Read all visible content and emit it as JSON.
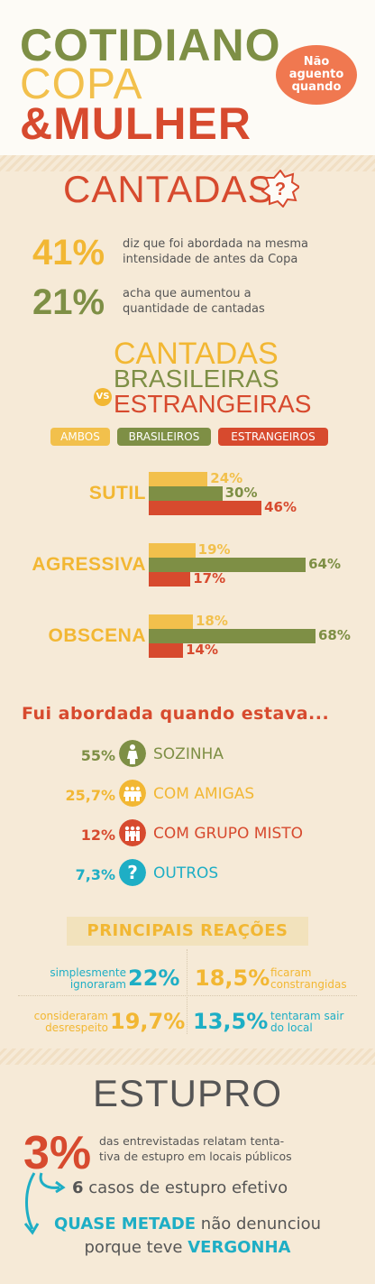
{
  "header": {
    "title_line1": "COTIDIANO",
    "title_line2": "COPA",
    "title_line3": "&MULHER",
    "badge": "Não aguento quando"
  },
  "cantadas": {
    "heading": "CANTADAS",
    "question_mark": "?",
    "stat1": {
      "value": "41%",
      "text": "diz que foi abordada na mesma intensidade de antes da Copa"
    },
    "stat2": {
      "value": "21%",
      "text": "acha que aumentou a quantidade de cantadas"
    }
  },
  "comparison": {
    "title_line1": "CANTADAS",
    "title_line2": "BRASILEIRAS",
    "vs": "VS",
    "title_line3": "ESTRANGEIRAS"
  },
  "chart_data": {
    "type": "bar",
    "orientation": "horizontal",
    "categories": [
      "SUTIL",
      "AGRESSIVA",
      "OBSCENA"
    ],
    "series": [
      {
        "name": "AMBOS",
        "color": "#f2c04c",
        "values": [
          24,
          19,
          18
        ]
      },
      {
        "name": "BRASILEIROS",
        "color": "#7e8f45",
        "values": [
          30,
          64,
          68
        ]
      },
      {
        "name": "ESTRANGEIROS",
        "color": "#d74a2e",
        "values": [
          46,
          17,
          14
        ]
      }
    ],
    "value_labels": [
      [
        "24%",
        "19%",
        "18%"
      ],
      [
        "30%",
        "64%",
        "68%"
      ],
      [
        "46%",
        "17%",
        "14%"
      ]
    ],
    "legend_position": "top"
  },
  "abordada": {
    "heading": "Fui abordada quando estava...",
    "items": [
      {
        "pct": "55%",
        "label": "SOZINHA",
        "icon": "person-icon",
        "color": "#7e8f45"
      },
      {
        "pct": "25,7%",
        "label": "COM AMIGAS",
        "icon": "women-group-icon",
        "color": "#f2b733"
      },
      {
        "pct": "12%",
        "label": "COM GRUPO MISTO",
        "icon": "mixed-group-icon",
        "color": "#d74a2e"
      },
      {
        "pct": "7,3%",
        "label": "OUTROS",
        "icon": "question-icon",
        "color": "#1eaec5"
      }
    ]
  },
  "reacoes": {
    "heading": "PRINCIPAIS REAÇÕES",
    "items": [
      {
        "text_l1": "simplesmente",
        "text_l2": "ignoraram",
        "value": "22%"
      },
      {
        "value": "18,5%",
        "text_l1": "ficaram",
        "text_l2": "constrangidas"
      },
      {
        "text_l1": "consideraram",
        "text_l2": "desrespeito",
        "value": "19,7%"
      },
      {
        "value": "13,5%",
        "text_l1": "tentaram sair",
        "text_l2": "do local"
      }
    ]
  },
  "estupro": {
    "heading": "ESTUPRO",
    "pct": "3%",
    "text_l1": "das entrevistadas relatam tenta-",
    "text_l2": "tiva de estupro em locais públicos",
    "casos_num": "6",
    "casos_text": "casos de estupro efetivo",
    "final_b1": "QUASE METADE",
    "final_t1": "não denunciou",
    "final_t2": "porque teve",
    "final_b2": "VERGONHA"
  },
  "colors": {
    "green": "#7e8f45",
    "yellow": "#f2c04c",
    "red": "#d74a2e",
    "cyan": "#1eaec5",
    "orange": "#f07850",
    "background": "#f6ead7"
  }
}
